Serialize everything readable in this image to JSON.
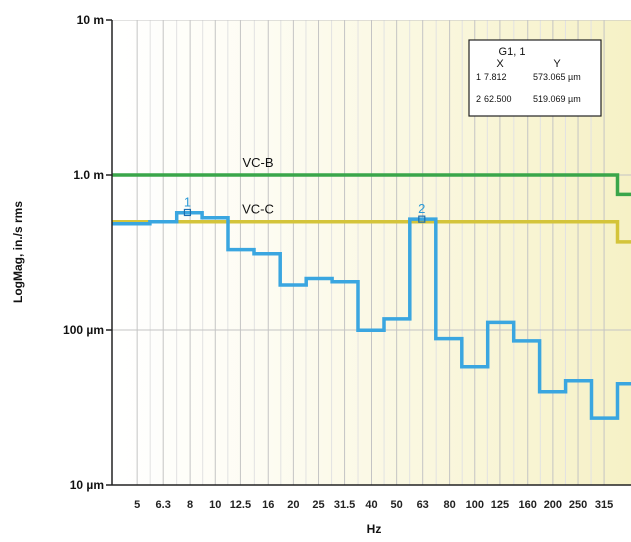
{
  "chart_data": {
    "type": "line",
    "step": true,
    "xscale": "log",
    "yscale": "log",
    "xlabel": "Hz",
    "ylabel": "LogMag, in./s rms",
    "xlim": [
      4,
      400
    ],
    "ylim": [
      1e-05,
      0.01
    ],
    "y_ticks": [
      {
        "value": 0.01,
        "label": "10 m"
      },
      {
        "value": 0.001,
        "label": "1.0 m"
      },
      {
        "value": 0.0001,
        "label": "100 µm"
      },
      {
        "value": 1e-05,
        "label": "10 µm"
      }
    ],
    "x_ticks": [
      5,
      6.3,
      8,
      10,
      12.5,
      16,
      20,
      25,
      31.5,
      40,
      50,
      63,
      80,
      100,
      125,
      160,
      200,
      250,
      315
    ],
    "x_tick_labels": [
      "5",
      "6.3",
      "8",
      "10",
      "12.5",
      "16",
      "20",
      "25",
      "31.5",
      "40",
      "50",
      "63",
      "80",
      "100",
      "125",
      "160",
      "200",
      "250",
      "315"
    ],
    "grid": true,
    "series": [
      {
        "color": "#3aa6e0",
        "bands": [
          {
            "x0": 4.0,
            "x1": 5.6,
            "y": 0.000485
          },
          {
            "x0": 5.6,
            "x1": 7.1,
            "y": 0.0005
          },
          {
            "x0": 7.1,
            "x1": 8.9,
            "y": 0.00057
          },
          {
            "x0": 8.9,
            "x1": 11.2,
            "y": 0.00053
          },
          {
            "x0": 11.2,
            "x1": 14.1,
            "y": 0.00033
          },
          {
            "x0": 14.1,
            "x1": 17.8,
            "y": 0.00031
          },
          {
            "x0": 17.8,
            "x1": 22.4,
            "y": 0.000195
          },
          {
            "x0": 22.4,
            "x1": 28.2,
            "y": 0.000215
          },
          {
            "x0": 28.2,
            "x1": 35.5,
            "y": 0.000205
          },
          {
            "x0": 35.5,
            "x1": 44.7,
            "y": 9.95e-05
          },
          {
            "x0": 44.7,
            "x1": 56.2,
            "y": 0.000118
          },
          {
            "x0": 56.2,
            "x1": 70.8,
            "y": 0.000519
          },
          {
            "x0": 70.8,
            "x1": 89.1,
            "y": 8.8e-05
          },
          {
            "x0": 89.1,
            "x1": 112.2,
            "y": 5.8e-05
          },
          {
            "x0": 112.2,
            "x1": 141.3,
            "y": 0.000112
          },
          {
            "x0": 141.3,
            "x1": 177.8,
            "y": 8.5e-05
          },
          {
            "x0": 177.8,
            "x1": 223.9,
            "y": 4e-05
          },
          {
            "x0": 223.9,
            "x1": 281.8,
            "y": 4.7e-05
          },
          {
            "x0": 281.8,
            "x1": 354.8,
            "y": 2.7e-05
          },
          {
            "x0": 354.8,
            "x1": 400,
            "y": 4.5e-05
          }
        ]
      }
    ],
    "reference_lines": [
      {
        "name": "VC-B",
        "color": "#3aa64a",
        "points": [
          [
            4,
            0.001
          ],
          [
            355,
            0.001
          ],
          [
            355,
            0.00075
          ],
          [
            400,
            0.00075
          ]
        ]
      },
      {
        "name": "VC-C",
        "color": "#d4c43a",
        "points": [
          [
            4,
            0.0005
          ],
          [
            355,
            0.0005
          ],
          [
            355,
            0.00037
          ],
          [
            400,
            0.00037
          ]
        ]
      }
    ],
    "markers": [
      {
        "label": "1",
        "x": 7.812,
        "y": 0.000573065
      },
      {
        "label": "2",
        "x": 62.5,
        "y": 0.000519069
      }
    ]
  },
  "marker_table": {
    "title": "G1, 1",
    "headers": [
      "X",
      "Y"
    ],
    "rows": [
      {
        "id": "1",
        "x": "7.812",
        "y": "573.065 µm"
      },
      {
        "id": "2",
        "x": "62.500",
        "y": "519.069 µm"
      }
    ]
  }
}
